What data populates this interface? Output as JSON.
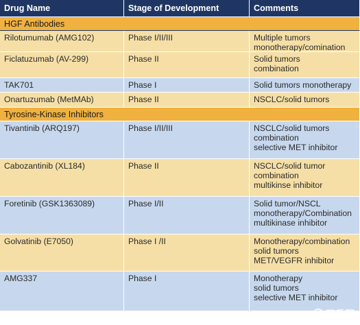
{
  "headers": [
    "Drug Name",
    "Stage of Development",
    "Comments"
  ],
  "sections": [
    {
      "title": "HGF Antibodies",
      "rows": [
        {
          "drug": "Rilotumumab (AMG102)",
          "stage": "Phase I/II/III",
          "comments": [
            "Multiple tumors",
            "monotherapy/comination"
          ]
        },
        {
          "drug": "Ficlatuzumab (AV-299)",
          "stage": "Phase II",
          "comments": [
            "Solid tumors",
            "combination"
          ]
        },
        {
          "drug": "TAK701",
          "stage": "Phase I",
          "comments": [
            "Solid tumors monotherapy"
          ]
        },
        {
          "drug": "Onartuzumab (MetMAb)",
          "stage": "Phase II",
          "comments": [
            "NSCLC/solid tumors"
          ]
        }
      ]
    },
    {
      "title": "Tyrosine-Kinase Inhibitors",
      "rows": [
        {
          "drug": "Tivantinib (ARQ197)",
          "stage": "Phase I/II/III",
          "comments": [
            "NSCLC/solid tumors",
            "combination",
            "selective MET inhibitor"
          ]
        },
        {
          "drug": "Cabozantinib (XL184)",
          "stage": "Phase II",
          "comments": [
            "NSCLC/solid tumor",
            "combination",
            "multikinse inhibitor"
          ]
        },
        {
          "drug": "Foretinib (GSK1363089)",
          "stage": "Phase I/II",
          "comments": [
            "Solid tumor/NSCL",
            "monotherapy/Combination",
            "multikinase inhibitor"
          ]
        },
        {
          "drug": "Golvatinib (E7050)",
          "stage": "Phase I /II",
          "comments": [
            "Monotherapy/combination",
            "solid tumors",
            "MET/VEGFR inhibitor"
          ]
        },
        {
          "drug": "AMG337",
          "stage": "Phase I",
          "comments": [
            "Monotherapy",
            "solid tumors",
            "selective MET inhibitor"
          ]
        }
      ]
    }
  ],
  "watermark": "丁香园",
  "colors": {
    "header": "#1f3664",
    "section": "#f0b13f",
    "row_beige": "#f6dfa6",
    "row_blue": "#c7d8ee"
  }
}
